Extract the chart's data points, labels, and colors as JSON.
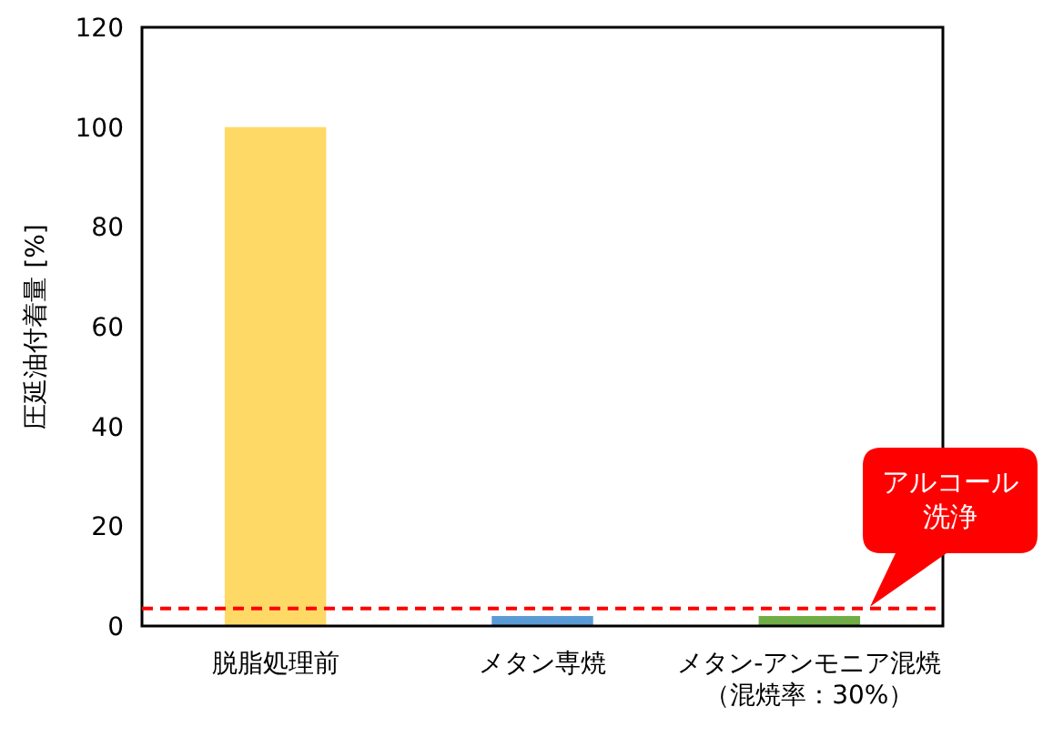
{
  "chart_data": {
    "type": "bar",
    "ylabel": "圧延油付着量 [%]",
    "categories": [
      "脱脂処理前",
      "メタン専焼",
      "メタン-アンモニア混焼（混焼率：30%）"
    ],
    "values": [
      100,
      2,
      2
    ],
    "colors": [
      "#ffd966",
      "#5b9bd5",
      "#70ad47"
    ],
    "ylim": [
      0,
      120
    ],
    "yticks": [
      0,
      20,
      40,
      60,
      80,
      100,
      120
    ],
    "grid": false,
    "ref_lines": [
      {
        "axis": "y",
        "value": 3.5,
        "label": "アルコール洗浄",
        "color": "#ff0000",
        "line_style": "dashed"
      }
    ]
  }
}
